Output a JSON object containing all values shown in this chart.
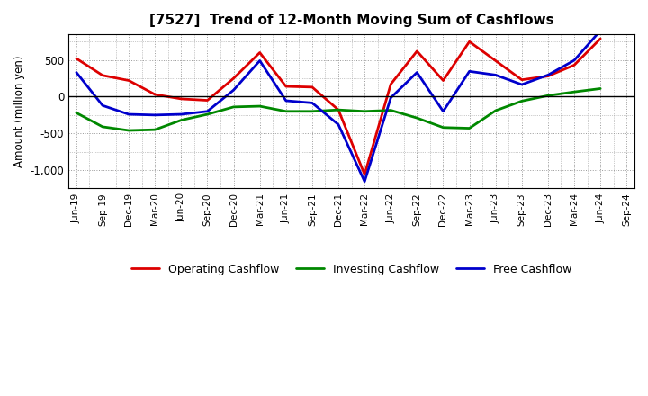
{
  "title": "[7527]  Trend of 12-Month Moving Sum of Cashflows",
  "ylabel": "Amount (million yen)",
  "x_labels": [
    "Jun-19",
    "Sep-19",
    "Dec-19",
    "Mar-20",
    "Jun-20",
    "Sep-20",
    "Dec-20",
    "Mar-21",
    "Jun-21",
    "Sep-21",
    "Dec-21",
    "Mar-22",
    "Jun-22",
    "Sep-22",
    "Dec-22",
    "Mar-23",
    "Jun-23",
    "Sep-23",
    "Dec-23",
    "Mar-24",
    "Jun-24",
    "Sep-24"
  ],
  "operating": [
    520,
    290,
    220,
    30,
    -30,
    -50,
    250,
    600,
    140,
    130,
    -180,
    -1060,
    170,
    620,
    220,
    750,
    490,
    230,
    280,
    430,
    790,
    null
  ],
  "investing": [
    -220,
    -410,
    -460,
    -450,
    -320,
    -240,
    -140,
    -130,
    -200,
    -200,
    -180,
    -200,
    -185,
    -290,
    -420,
    -430,
    -190,
    -60,
    15,
    65,
    110,
    null
  ],
  "free": [
    330,
    -120,
    -240,
    -250,
    -240,
    -200,
    90,
    490,
    -55,
    -85,
    -380,
    -1155,
    -15,
    330,
    -200,
    345,
    295,
    165,
    295,
    495,
    900,
    null
  ],
  "ylim": [
    -1250,
    850
  ],
  "yticks": [
    -1000,
    -500,
    0,
    500
  ],
  "operating_color": "#dd0000",
  "investing_color": "#008800",
  "free_color": "#0000cc",
  "bg_color": "#ffffff",
  "plot_bg_color": "#ffffff",
  "grid_color": "#999999",
  "linewidth": 2.0,
  "legend_labels": [
    "Operating Cashflow",
    "Investing Cashflow",
    "Free Cashflow"
  ]
}
